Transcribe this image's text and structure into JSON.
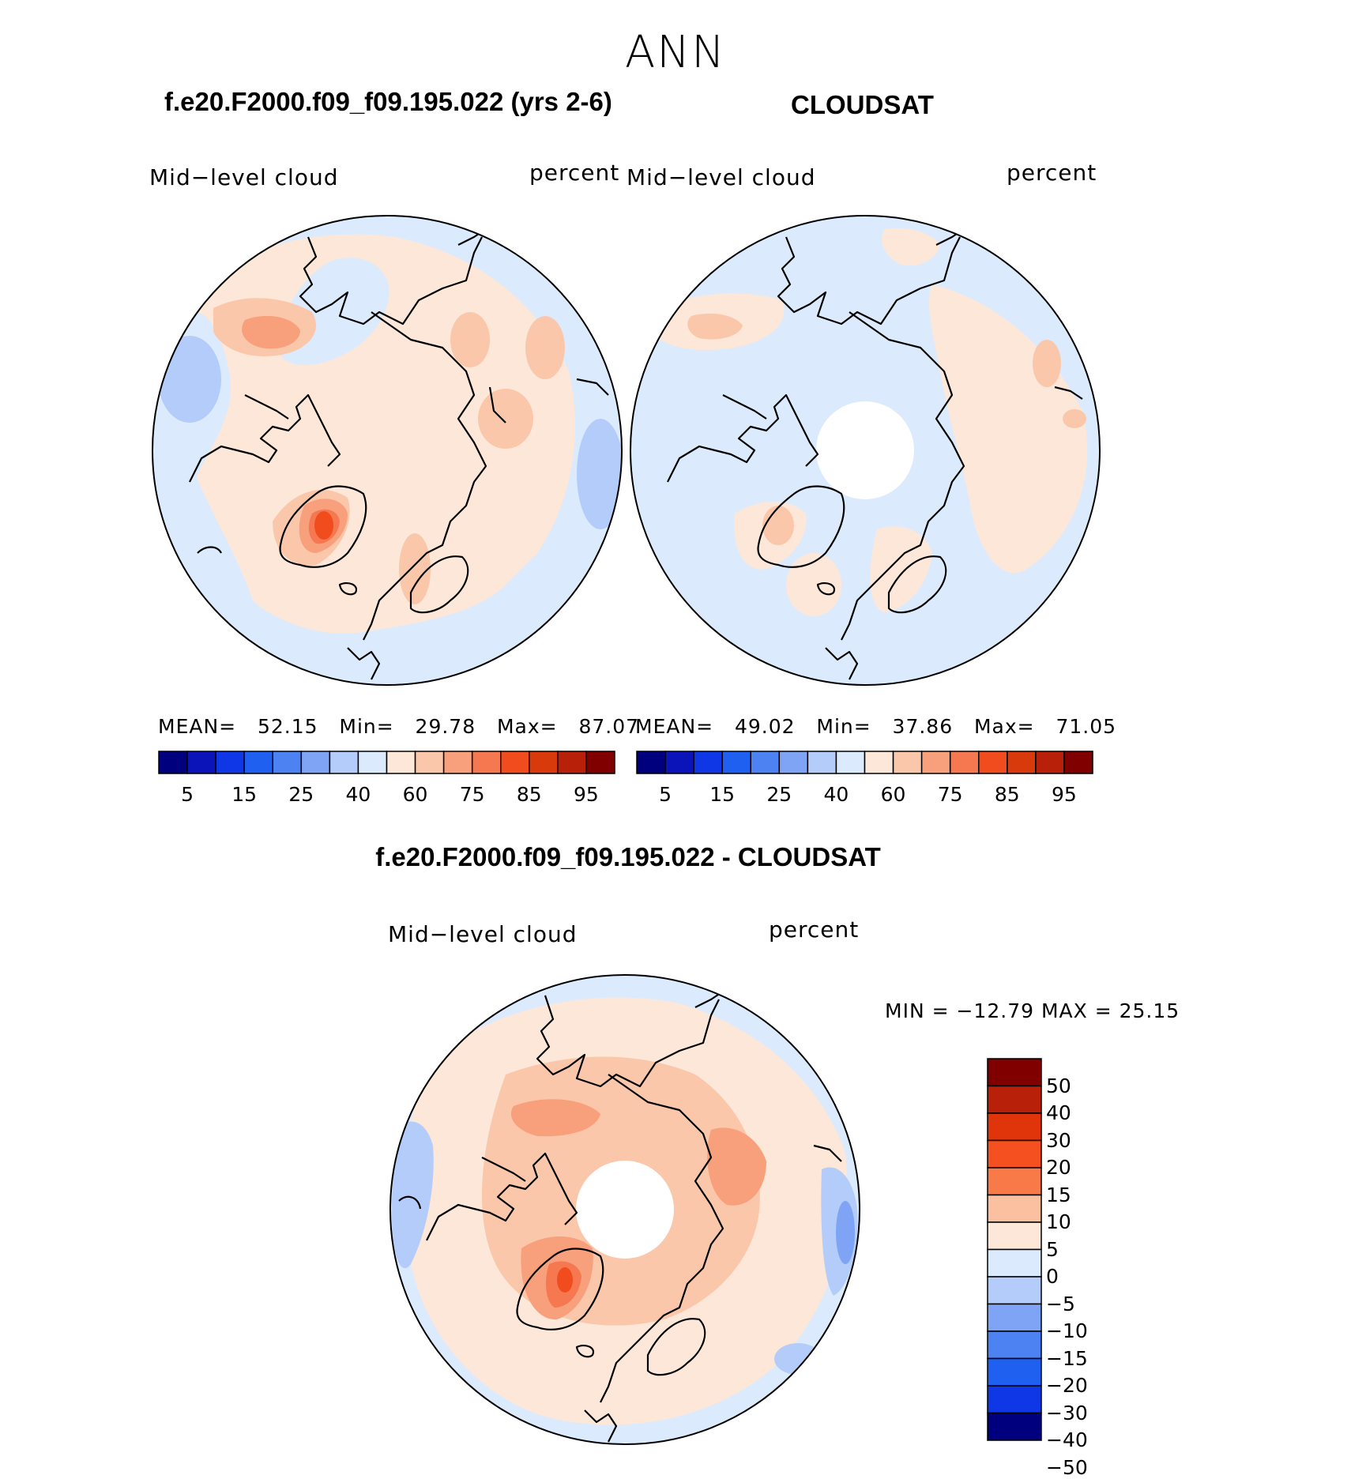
{
  "main_title": "ANN",
  "panels": [
    {
      "title": "f.e20.F2000.f09_f09.195.022 (yrs 2-6)",
      "variable": "Mid−level cloud",
      "units": "percent",
      "stats": {
        "mean_label": "MEAN=",
        "mean": "52.15",
        "min_label": "Min=",
        "min": "29.78",
        "max_label": "Max=",
        "max": "87.07"
      },
      "colorbar": {
        "colors": [
          "#00007f",
          "#0a14b8",
          "#0f37e6",
          "#2060f0",
          "#4d82f2",
          "#80a4f5",
          "#b4ccf9",
          "#dbebfd",
          "#fde7d8",
          "#fbc7aa",
          "#f8a07c",
          "#f57850",
          "#f04c1e",
          "#d93a0c",
          "#b8200a",
          "#800000"
        ],
        "ticks": [
          "5",
          "15",
          "25",
          "40",
          "60",
          "75",
          "85",
          "95"
        ]
      }
    },
    {
      "title": "CLOUDSAT",
      "variable": "Mid−level cloud",
      "units": "percent",
      "stats": {
        "mean_label": "MEAN=",
        "mean": "49.02",
        "min_label": "Min=",
        "min": "37.86",
        "max_label": "Max=",
        "max": "71.05"
      },
      "colorbar": {
        "colors": [
          "#00007f",
          "#0a14b8",
          "#0f37e6",
          "#2060f0",
          "#4d82f2",
          "#80a4f5",
          "#b4ccf9",
          "#dbebfd",
          "#fde7d8",
          "#fbc7aa",
          "#f8a07c",
          "#f57850",
          "#f04c1e",
          "#d93a0c",
          "#b8200a",
          "#800000"
        ],
        "ticks": [
          "5",
          "15",
          "25",
          "40",
          "60",
          "75",
          "85",
          "95"
        ]
      }
    },
    {
      "title": "f.e20.F2000.f09_f09.195.022 - CLOUDSAT",
      "variable": "Mid−level cloud",
      "units": "percent",
      "stats_text": "MIN = −12.79 MAX =   25.15",
      "colorbar": {
        "colors": [
          "#800000",
          "#b8200a",
          "#e0350a",
          "#f55020",
          "#f87a48",
          "#fbc0a0",
          "#fde7d8",
          "#dbebfd",
          "#b4ccf9",
          "#80a4f5",
          "#4d82f2",
          "#2060f0",
          "#0f37e6",
          "#00007f"
        ],
        "ticks": [
          "50",
          "40",
          "30",
          "20",
          "15",
          "10",
          "5",
          "0",
          "−5",
          "−10",
          "−15",
          "−20",
          "−30",
          "−40",
          "−50"
        ]
      }
    }
  ],
  "map_colors": {
    "ocean_edge": "#dbebfd",
    "neutral": "#fde7d8",
    "light_orange": "#fbc7aa",
    "mid_orange": "#f8a07c",
    "strong_orange": "#f57850",
    "deep_red": "#f04c1e",
    "blue_light": "#b4ccf9",
    "blue_mid": "#80a4f5",
    "missing": "#ffffff",
    "coast": "#000000"
  }
}
